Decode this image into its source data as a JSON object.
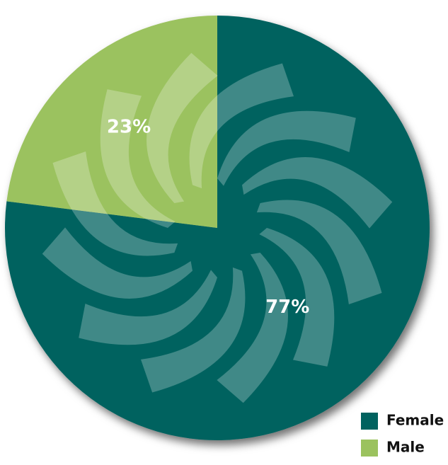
{
  "chart_data": {
    "type": "pie",
    "categories": [
      "Female",
      "Male"
    ],
    "values": [
      77,
      23
    ],
    "value_labels": [
      "77%",
      "23%"
    ],
    "colors": [
      "#00625f",
      "#9bc25e"
    ],
    "legend": "lower right"
  }
}
